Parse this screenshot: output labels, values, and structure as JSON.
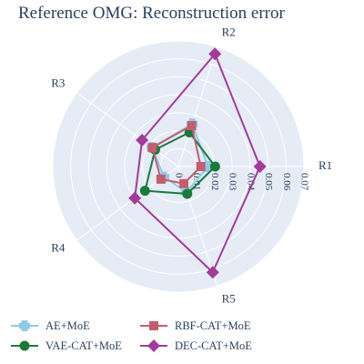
{
  "chart_data": {
    "type": "radar",
    "title": "Reference OMG: Reconstruction error",
    "axes": [
      "R1",
      "R2",
      "R3",
      "R4",
      "R5"
    ],
    "radial_ticks": [
      "0",
      "0.01",
      "0.02",
      "0.03",
      "0.04",
      "0.05",
      "0.06",
      "0.07"
    ],
    "radial_range": [
      0,
      0.07
    ],
    "grid": true,
    "legend_position": "bottom",
    "series": [
      {
        "name": "AE+MoE",
        "color": "#8ecae6",
        "marker": "cross",
        "values": [
          0.0165,
          0.025,
          0.018,
          0.01,
          0.015
        ]
      },
      {
        "name": "VAE-CAT+MoE",
        "color": "#1a7a3a",
        "marker": "circle",
        "values": [
          0.0205,
          0.02,
          0.016,
          0.023,
          0.016
        ]
      },
      {
        "name": "RBF-CAT+MoE",
        "color": "#c55c6f",
        "marker": "square",
        "values": [
          0.0125,
          0.024,
          0.018,
          0.012,
          0.01
        ]
      },
      {
        "name": "DEC-CAT+MoE",
        "color": "#a23b9b",
        "marker": "diamond",
        "values": [
          0.0455,
          0.066,
          0.025,
          0.03,
          0.062
        ]
      }
    ]
  }
}
